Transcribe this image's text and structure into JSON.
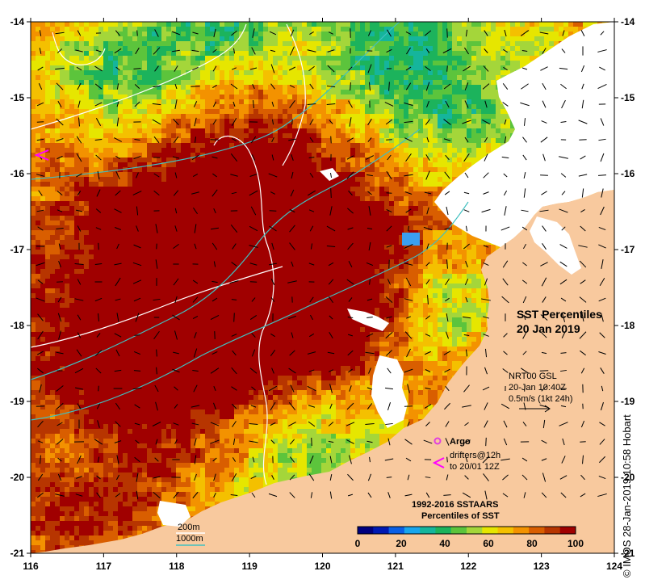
{
  "title": {
    "line1": "SST Percentiles",
    "line2": "20 Jan 2019"
  },
  "current_legend": {
    "line1": "NRT00 GSL",
    "line2": "20-Jan 10:40Z",
    "line3": "0.5m/s (1kt 24h)"
  },
  "argo_legend": {
    "argo_label": "Argo",
    "drifters_line1": "drifters@12h",
    "drifters_line2": "to 20/01 12Z"
  },
  "colorbar": {
    "title_line1": "1992-2016 SSTAARS",
    "title_line2": "Percentiles of SST",
    "tick_labels": [
      "0",
      "20",
      "40",
      "60",
      "80",
      "100"
    ],
    "colors": [
      "#00007f",
      "#0019b3",
      "#0a5fe6",
      "#18a6ee",
      "#15b59c",
      "#1cb35c",
      "#5cc43c",
      "#a4d63a",
      "#e6e600",
      "#f4c000",
      "#f39200",
      "#d95e00",
      "#b73500",
      "#a00000"
    ]
  },
  "isobath_legend": {
    "label_200m": "200m",
    "label_1000m": "1000m",
    "color_200m": "#ffffff",
    "color_1000m": "#40c0c0"
  },
  "axes": {
    "x_ticks": [
      "116",
      "117",
      "118",
      "119",
      "120",
      "121",
      "122",
      "123",
      "124"
    ],
    "y_ticks": [
      "-14",
      "-15",
      "-16",
      "-17",
      "-18",
      "-19",
      "-20",
      "-21"
    ]
  },
  "credit": "© IMOS 28-Jan-2019 10:58 Hobart",
  "colors": {
    "land": "#f8c99e",
    "cloud": "#ffffff",
    "argo": "#e040e0",
    "drifter": "#ff00ff"
  }
}
